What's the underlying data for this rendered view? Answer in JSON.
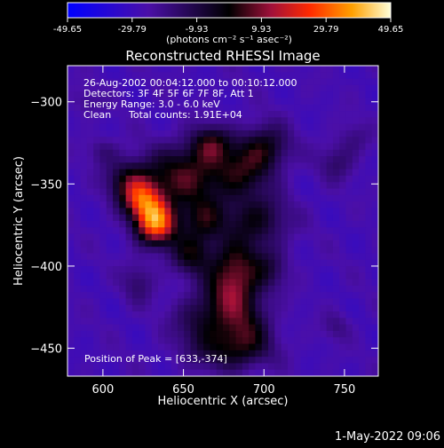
{
  "chart_data": {
    "type": "heatmap",
    "title": "Reconstructed RHESSI Image",
    "xlabel": "Heliocentric X (arcsec)",
    "ylabel": "Heliocentric Y (arcsec)",
    "xlim": [
      578,
      771
    ],
    "ylim": [
      -467,
      -278
    ],
    "x_ticks": [
      600,
      650,
      700,
      750
    ],
    "y_ticks": [
      -300,
      -350,
      -400,
      -450
    ],
    "colorbar": {
      "ticks": [
        "-49.65",
        "-29.79",
        "-9.93",
        "9.93",
        "29.79",
        "49.65"
      ],
      "range": [
        -49.65,
        49.65
      ],
      "unit_text": "(photons cm⁻² s⁻¹ asec⁻²)"
    },
    "annotations": {
      "time_range": "26-Aug-2002 00:04:12.000 to 00:10:12.000",
      "detectors": "Detectors: 3F 4F 5F 6F 7F 8F, Att 1",
      "energy_range": "Energy Range: 3.0 - 6.0 keV",
      "clean_label": "Clean",
      "total_counts": "Total counts: 1.91E+04",
      "peak_position": "Position of Peak = [633,-374]"
    },
    "sources": [
      {
        "x": 633,
        "y": -374,
        "peak": 49.65,
        "sx": 9,
        "sy": 9
      },
      {
        "x": 625,
        "y": -360,
        "peak": 34,
        "sx": 9,
        "sy": 8
      },
      {
        "x": 617,
        "y": -348,
        "peak": 22,
        "sx": 10,
        "sy": 9
      },
      {
        "x": 650,
        "y": -345,
        "peak": 26,
        "sx": 16,
        "sy": 13
      },
      {
        "x": 667,
        "y": -326,
        "peak": 22,
        "sx": 9,
        "sy": 8
      },
      {
        "x": 700,
        "y": -328,
        "peak": 22,
        "sx": 11,
        "sy": 10
      },
      {
        "x": 684,
        "y": -344,
        "peak": 20,
        "sx": 13,
        "sy": 11
      },
      {
        "x": 695,
        "y": -372,
        "peak": 20,
        "sx": 14,
        "sy": 11
      },
      {
        "x": 662,
        "y": -372,
        "peak": 20,
        "sx": 10,
        "sy": 10
      },
      {
        "x": 655,
        "y": -393,
        "peak": 20,
        "sx": 9,
        "sy": 9
      },
      {
        "x": 682,
        "y": -398,
        "peak": 20,
        "sx": 11,
        "sy": 11
      },
      {
        "x": 680,
        "y": -415,
        "peak": 24,
        "sx": 11,
        "sy": 11
      },
      {
        "x": 663,
        "y": -433,
        "peak": 17,
        "sx": 13,
        "sy": 11
      },
      {
        "x": 689,
        "y": -436,
        "peak": 18,
        "sx": 11,
        "sy": 12
      },
      {
        "x": 679,
        "y": -451,
        "peak": 18,
        "sx": 17,
        "sy": 9
      },
      {
        "x": 703,
        "y": -402,
        "peak": 12,
        "sx": 9,
        "sy": 9
      },
      {
        "x": 745,
        "y": -337,
        "peak": 10,
        "sx": 8,
        "sy": 8
      },
      {
        "x": 756,
        "y": -322,
        "peak": 7,
        "sx": 7,
        "sy": 7
      },
      {
        "x": 745,
        "y": -437,
        "peak": 7,
        "sx": 6,
        "sy": 6
      },
      {
        "x": 622,
        "y": -410,
        "peak": 10,
        "sx": 7,
        "sy": 9
      },
      {
        "x": 600,
        "y": -330,
        "peak": 8,
        "sx": 7,
        "sy": 6
      },
      {
        "x": 590,
        "y": -300,
        "peak": 6,
        "sx": 7,
        "sy": 6
      }
    ]
  },
  "footer": {
    "timestamp": "1-May-2022 09:06"
  },
  "colors": {
    "frame": "#ffffff",
    "text": "#ffffff",
    "background": "#000000"
  }
}
